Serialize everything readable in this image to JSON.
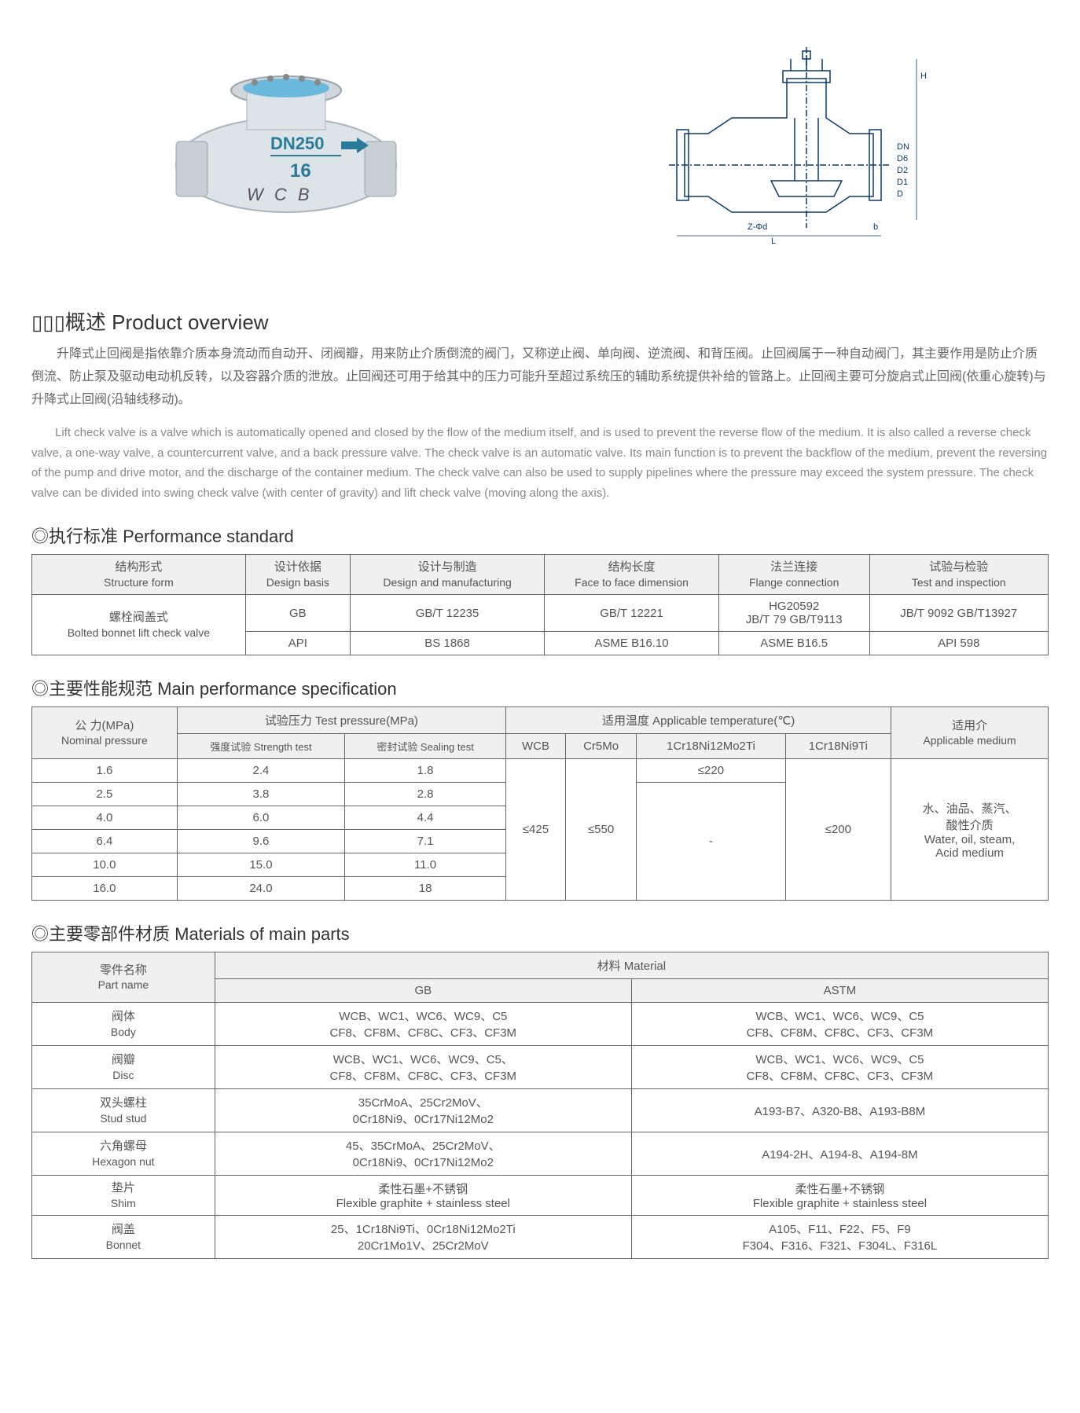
{
  "images": {
    "photo_label_top": "DN250",
    "photo_label_mid": "16",
    "photo_label_bottom": "WCB",
    "diagram_dims": [
      "H",
      "D",
      "D1",
      "D2",
      "D6",
      "DN",
      "L",
      "b",
      "Z-Φd"
    ]
  },
  "overview": {
    "heading": "▯▯▯概述 Product overview",
    "paragraph_cn": "升降式止回阀是指依靠介质本身流动而自动开、闭阀瓣，用来防止介质倒流的阀门，又称逆止阀、单向阀、逆流阀、和背压阀。止回阀属于一种自动阀门，其主要作用是防止介质倒流、防止泵及驱动电动机反转，以及容器介质的泄放。止回阀还可用于给其中的压力可能升至超过系统压的辅助系统提供补给的管路上。止回阀主要可分旋启式止回阀(依重心旋转)与升降式止回阀(沿轴线移动)。",
    "paragraph_en": "Lift check valve is a valve which is automatically opened and closed by the flow of the medium itself, and is used to prevent the reverse flow of the medium. It is also called a reverse check valve, a one-way valve, a countercurrent valve, and a back pressure valve. The check valve is an automatic valve. Its main function is to prevent the backflow of the medium, prevent the reversing of the pump and drive motor, and the discharge of the container medium. The check valve can also be used to supply pipelines where the pressure may exceed the system pressure. The check valve can be divided into swing check valve (with center of gravity) and lift check valve (moving along the axis)."
  },
  "perf_std": {
    "heading": "◎执行标准 Performance standard",
    "headers": [
      {
        "cn": "结构形式",
        "en": "Structure form"
      },
      {
        "cn": "设计依据",
        "en": "Design basis"
      },
      {
        "cn": "设计与制造",
        "en": "Design and manufacturing"
      },
      {
        "cn": "结构长度",
        "en": "Face to face dimension"
      },
      {
        "cn": "法兰连接",
        "en": "Flange connection"
      },
      {
        "cn": "试验与检验",
        "en": "Test and inspection"
      }
    ],
    "rowspan_label": {
      "cn": "螺栓阀盖式",
      "en": "Bolted bonnet lift check valve"
    },
    "row1": [
      "GB",
      "GB/T 12235",
      "GB/T 12221",
      "HG20592\nJB/T 79   GB/T9113",
      "JB/T 9092  GB/T13927"
    ],
    "row2": [
      "API",
      "BS 1868",
      "ASME B16.10",
      "ASME B16.5",
      "API 598"
    ]
  },
  "main_perf": {
    "heading": "◎主要性能规范 Main performance specification",
    "h_pressure": {
      "cn": "公        力(MPa)",
      "en": "Nominal pressure"
    },
    "h_test": "试验压力 Test pressure(MPa)",
    "h_temp": "适用温度 Applicable temperature(℃)",
    "h_medium": {
      "cn": "适用介",
      "en": "Applicable medium"
    },
    "h_strength": "强度试验 Strength test",
    "h_sealing": "密封试验 Sealing test",
    "temp_cols": [
      "WCB",
      "Cr5Mo",
      "1Cr18Ni12Mo2Ti",
      "1Cr18Ni9Ti"
    ],
    "rows": [
      [
        "1.6",
        "2.4",
        "1.8"
      ],
      [
        "2.5",
        "3.8",
        "2.8"
      ],
      [
        "4.0",
        "6.0",
        "4.4"
      ],
      [
        "6.4",
        "9.6",
        "7.1"
      ],
      [
        "10.0",
        "15.0",
        "11.0"
      ],
      [
        "16.0",
        "24.0",
        "18"
      ]
    ],
    "wcb_val": "≤425",
    "cr5mo_val": "≤550",
    "ni12_val_top": "≤220",
    "ni12_val_bottom": "-",
    "ni9ti_val": "≤200",
    "medium_val": "水、油品、蒸汽、\n酸性介质\nWater, oil, steam,\nAcid medium"
  },
  "materials": {
    "heading": "◎主要零部件材质 Materials of main parts",
    "h_part": {
      "cn": "零件名称",
      "en": "Part name"
    },
    "h_material": "材料 Material",
    "h_gb": "GB",
    "h_astm": "ASTM",
    "rows": [
      {
        "part_cn": "阀体",
        "part_en": "Body",
        "gb": "WCB、WC1、WC6、WC9、C5\nCF8、CF8M、CF8C、CF3、CF3M",
        "astm": "WCB、WC1、WC6、WC9、C5\nCF8、CF8M、CF8C、CF3、CF3M"
      },
      {
        "part_cn": "阀瓣",
        "part_en": "Disc",
        "gb": "WCB、WC1、WC6、WC9、C5、\nCF8、CF8M、CF8C、CF3、CF3M",
        "astm": "WCB、WC1、WC6、WC9、C5\nCF8、CF8M、CF8C、CF3、CF3M"
      },
      {
        "part_cn": "双头螺柱",
        "part_en": "Stud stud",
        "gb": "35CrMoA、25Cr2MoV、\n0Cr18Ni9、0Cr17Ni12Mo2",
        "astm": "A193-B7、A320-B8、A193-B8M"
      },
      {
        "part_cn": "六角螺母",
        "part_en": "Hexagon nut",
        "gb": "45、35CrMoA、25Cr2MoV、\n0Cr18Ni9、0Cr17Ni12Mo2",
        "astm": "A194-2H、A194-8、A194-8M"
      },
      {
        "part_cn": "垫片",
        "part_en": "Shim",
        "gb": "柔性石墨+不锈钢\nFlexible graphite + stainless steel",
        "astm": "柔性石墨+不锈钢\nFlexible graphite + stainless steel"
      },
      {
        "part_cn": "阀盖",
        "part_en": "Bonnet",
        "gb": "25、1Cr18Ni9Ti、0Cr18Ni12Mo2Ti\n20Cr1Mo1V、25Cr2MoV",
        "astm": "A105、F11、F22、F5、F9\nF304、F316、F321、F304L、F316L"
      }
    ]
  }
}
